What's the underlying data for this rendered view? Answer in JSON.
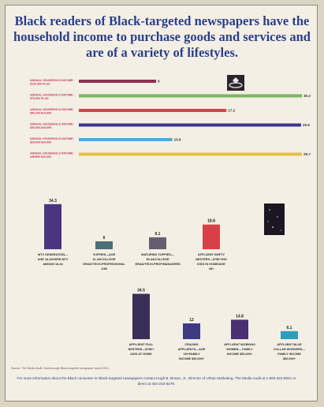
{
  "title": "Black readers of Black-targeted newspapers have the household income to purchase goods and services and are of a variety of lifestyles.",
  "source_note": "Source: The Media Audit, Scarborough Black-targeted newspaper report 2001",
  "footer": "For more information about the Black consumer or Black-targeted newspapers contact Hugh B. Brown, Jr., Director of Urban Marketing, The Media Audit at 1-800-324-8021 or direct at 404-243-6276.",
  "colors": {
    "title": "#2a3e8a",
    "income_bars": [
      "#8e2f52",
      "#78b85e",
      "#d8414c",
      "#3a3590",
      "#53a8d6",
      "#e3c046"
    ],
    "columns": [
      "#4a3680",
      "#4e6e78",
      "#665e70",
      "#d84048",
      "#3a2f58",
      "#3e3a84",
      "#4a3070",
      "#2e9ec0"
    ]
  },
  "icons": [
    "diamond-ring-photo",
    "night-sky-photo"
  ],
  "chart_data": [
    {
      "type": "bar",
      "orientation": "horizontal",
      "categories": [
        "ANNUAL HOUSEHOLD INCOME: $100,000 PLUS",
        "ANNUAL HOUSEHOLD INCOME: $75,000 PLUS",
        "ANNUAL HOUSEHOLD INCOME: $50,000-$74,999",
        "ANNUAL HOUSEHOLD INCOME: $35,000-$49,999",
        "ANNUAL HOUSEHOLD INCOME: $25,000-$34,999",
        "ANNUAL HOUSEHOLD INCOME: UNDER $25,000"
      ],
      "values": [
        9,
        30.2,
        17.2,
        25.9,
        10.9,
        29.7
      ],
      "value_labels": [
        "9",
        "30.2",
        "17.2",
        "25.9",
        "10.9",
        "29.7"
      ],
      "xlim": [
        0,
        26
      ]
    },
    {
      "type": "bar",
      "orientation": "vertical",
      "categories": [
        "MTV GENERATION— AGE 18-44/VIEW MTV AMONG 18-44",
        "YUPPIES—AGE 21-34/COLLEGE GRAD/TECH-PROFESSIONAL JOB",
        "MATURING YUPPIES— 35-44/COLLEGE GRAD/TECH-PROF/MANAGERS",
        "AFFLUENT EMPTY NESTERS—$75K+/NO KIDS IN HOME/AGE 45+"
      ],
      "values": [
        34.3,
        6,
        9.1,
        18.8
      ],
      "value_labels": [
        "34.3",
        "6",
        "9.1",
        "18.8"
      ],
      "ylim": [
        0,
        36
      ]
    },
    {
      "type": "bar",
      "orientation": "vertical",
      "categories": [
        "AFFLUENT FULL NESTERS—$75K+ KIDS AT HOME",
        "CRAVING AFFLUENTS—AGE 18+/FAMILY INCOME $50,000+",
        "AFFLUENT WORKING WOMEN— FAMILY INCOME $50,000+",
        "AFFLUENT BLUE COLLAR WORKERS— FAMILY INCOME $50,000+"
      ],
      "values": [
        34.5,
        12,
        14.8,
        6.1
      ],
      "value_labels": [
        "34.5",
        "12",
        "14.8",
        "6.1"
      ],
      "ylim": [
        0,
        36
      ]
    }
  ]
}
